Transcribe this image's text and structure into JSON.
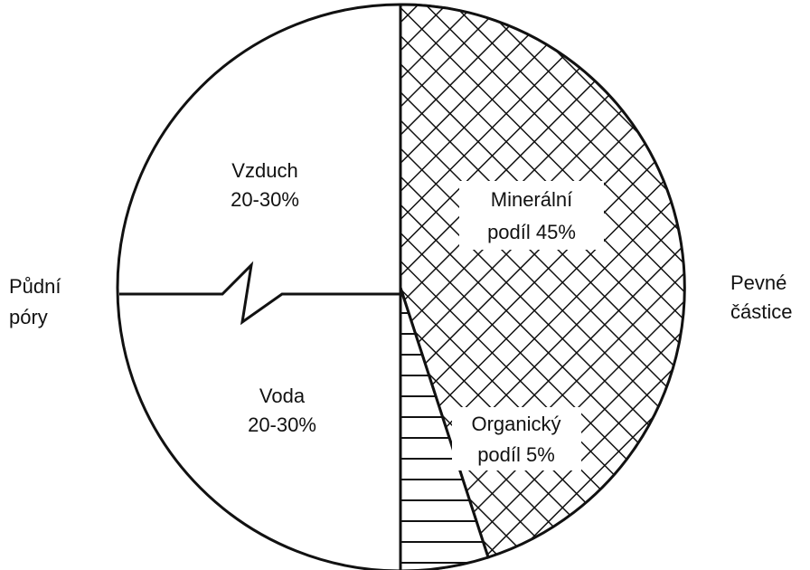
{
  "labels": {
    "air": [
      "Vzduch",
      "20-30%"
    ],
    "water": [
      "Voda",
      "20-30%"
    ],
    "mineral": [
      "Minerální",
      "podíl  45%"
    ],
    "organic": [
      "Organický",
      "podíl  5%"
    ],
    "pores": [
      "Půdní",
      "póry"
    ],
    "solids": [
      "Pevné",
      "částice"
    ]
  }
}
